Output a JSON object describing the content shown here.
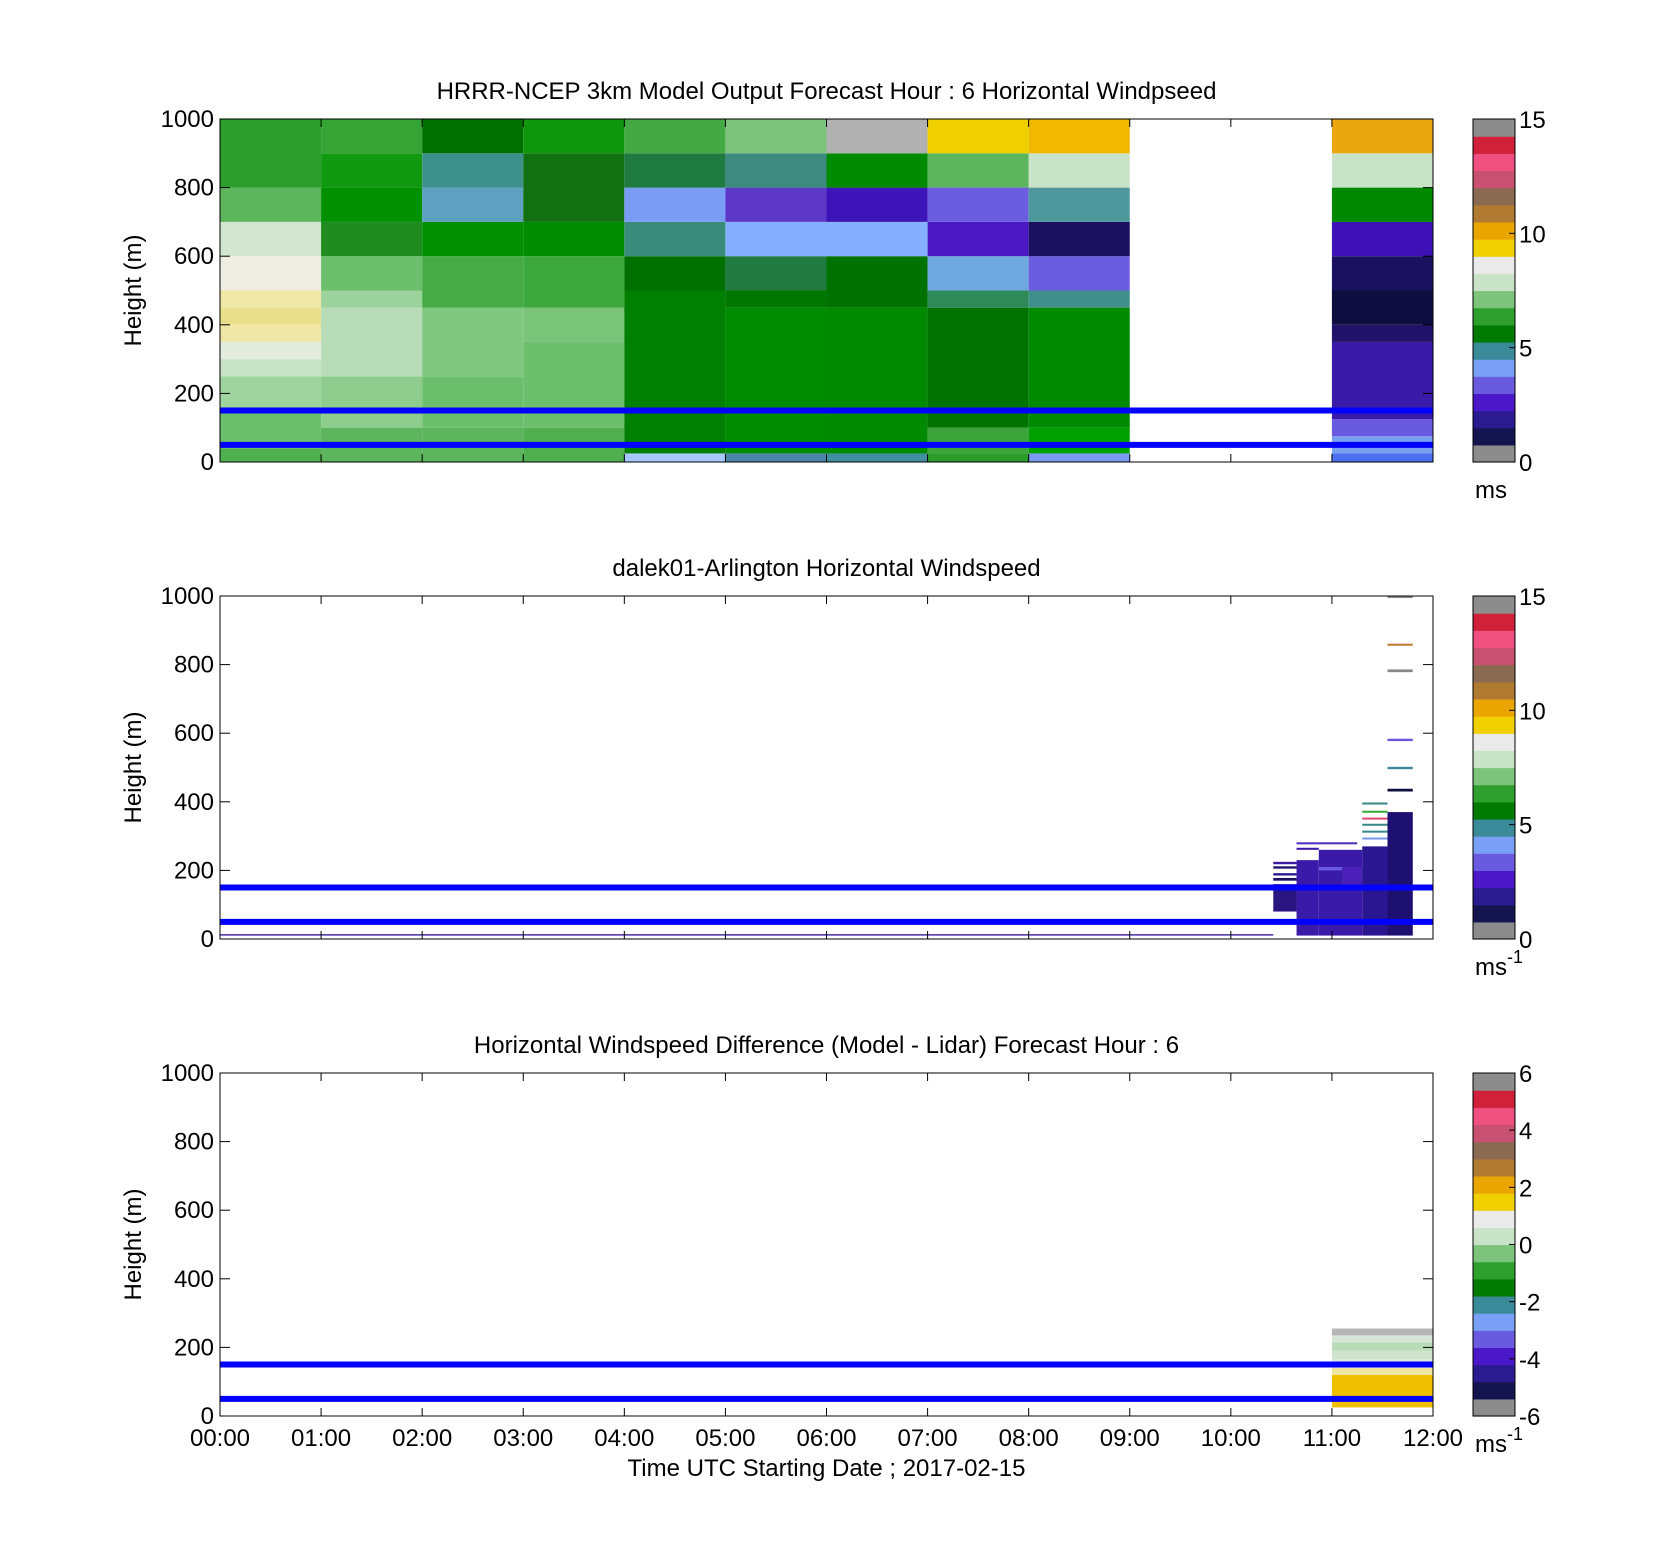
{
  "chart_data": [
    {
      "type": "heatmap",
      "title": "HRRR-NCEP 3km Model Output   Forecast Hour : 6 Horizontal Windpseed",
      "ylabel": "Height (m)",
      "ylim": [
        0,
        1000
      ],
      "yticks": [
        "0",
        "200",
        "400",
        "600",
        "800",
        "1000"
      ],
      "xlim_hours": [
        0,
        12
      ],
      "colorbar": {
        "ticks": [
          "0",
          "5",
          "10",
          "15"
        ],
        "range": [
          0,
          15
        ],
        "unit": "ms",
        "unit_sup": ""
      },
      "reference_lines_m": [
        150,
        50
      ],
      "cells": [
        {
          "t0": 0,
          "t1": 1,
          "z0": 0,
          "z1": 40,
          "color": "#4fb04f"
        },
        {
          "t0": 0,
          "t1": 1,
          "z0": 40,
          "z1": 160,
          "color": "#6cbf6c"
        },
        {
          "t0": 0,
          "t1": 1,
          "z0": 160,
          "z1": 250,
          "color": "#9fd49f"
        },
        {
          "t0": 0,
          "t1": 1,
          "z0": 250,
          "z1": 300,
          "color": "#c8e3c8"
        },
        {
          "t0": 0,
          "t1": 1,
          "z0": 300,
          "z1": 350,
          "color": "#e3ecdf"
        },
        {
          "t0": 0,
          "t1": 1,
          "z0": 350,
          "z1": 400,
          "color": "#f0e6a8"
        },
        {
          "t0": 0,
          "t1": 1,
          "z0": 400,
          "z1": 450,
          "color": "#eadf8b"
        },
        {
          "t0": 0,
          "t1": 1,
          "z0": 450,
          "z1": 500,
          "color": "#f0e8a6"
        },
        {
          "t0": 0,
          "t1": 1,
          "z0": 500,
          "z1": 600,
          "color": "#f0ede3"
        },
        {
          "t0": 0,
          "t1": 1,
          "z0": 600,
          "z1": 700,
          "color": "#d2e6d2"
        },
        {
          "t0": 0,
          "t1": 1,
          "z0": 700,
          "z1": 800,
          "color": "#5db55d"
        },
        {
          "t0": 0,
          "t1": 1,
          "z0": 800,
          "z1": 1000,
          "color": "#2d9d2d"
        },
        {
          "t0": 1,
          "t1": 2,
          "z0": 0,
          "z1": 100,
          "color": "#5db55d"
        },
        {
          "t0": 1,
          "t1": 2,
          "z0": 100,
          "z1": 250,
          "color": "#8dcc8d"
        },
        {
          "t0": 1,
          "t1": 2,
          "z0": 250,
          "z1": 450,
          "color": "#b8dcb8"
        },
        {
          "t0": 1,
          "t1": 2,
          "z0": 450,
          "z1": 500,
          "color": "#9cd29c"
        },
        {
          "t0": 1,
          "t1": 2,
          "z0": 500,
          "z1": 600,
          "color": "#6cbf6c"
        },
        {
          "t0": 1,
          "t1": 2,
          "z0": 600,
          "z1": 700,
          "color": "#1f8c1f"
        },
        {
          "t0": 1,
          "t1": 2,
          "z0": 700,
          "z1": 800,
          "color": "#009000"
        },
        {
          "t0": 1,
          "t1": 2,
          "z0": 800,
          "z1": 900,
          "color": "#119911"
        },
        {
          "t0": 1,
          "t1": 2,
          "z0": 900,
          "z1": 1000,
          "color": "#35a435"
        },
        {
          "t0": 2,
          "t1": 3,
          "z0": 0,
          "z1": 100,
          "color": "#5cb55c"
        },
        {
          "t0": 2,
          "t1": 3,
          "z0": 100,
          "z1": 250,
          "color": "#6cbf6c"
        },
        {
          "t0": 2,
          "t1": 3,
          "z0": 250,
          "z1": 450,
          "color": "#80c780"
        },
        {
          "t0": 2,
          "t1": 3,
          "z0": 450,
          "z1": 600,
          "color": "#46aa46"
        },
        {
          "t0": 2,
          "t1": 3,
          "z0": 600,
          "z1": 700,
          "color": "#009000"
        },
        {
          "t0": 2,
          "t1": 3,
          "z0": 700,
          "z1": 800,
          "color": "#5ea0c0"
        },
        {
          "t0": 2,
          "t1": 3,
          "z0": 800,
          "z1": 900,
          "color": "#3d8f8a"
        },
        {
          "t0": 2,
          "t1": 3,
          "z0": 900,
          "z1": 1000,
          "color": "#007000"
        },
        {
          "t0": 3,
          "t1": 4,
          "z0": 0,
          "z1": 100,
          "color": "#50b050"
        },
        {
          "t0": 3,
          "t1": 4,
          "z0": 100,
          "z1": 350,
          "color": "#6cbf6c"
        },
        {
          "t0": 3,
          "t1": 4,
          "z0": 350,
          "z1": 450,
          "color": "#7ac47a"
        },
        {
          "t0": 3,
          "t1": 4,
          "z0": 450,
          "z1": 600,
          "color": "#3da83d"
        },
        {
          "t0": 3,
          "t1": 4,
          "z0": 600,
          "z1": 700,
          "color": "#008c00"
        },
        {
          "t0": 3,
          "t1": 4,
          "z0": 700,
          "z1": 900,
          "color": "#117011"
        },
        {
          "t0": 3,
          "t1": 4,
          "z0": 900,
          "z1": 1000,
          "color": "#0f960f"
        },
        {
          "t0": 4,
          "t1": 5,
          "z0": 0,
          "z1": 25,
          "color": "#a6c8ff"
        },
        {
          "t0": 4,
          "t1": 5,
          "z0": 25,
          "z1": 500,
          "color": "#007f00"
        },
        {
          "t0": 4,
          "t1": 5,
          "z0": 500,
          "z1": 600,
          "color": "#007000"
        },
        {
          "t0": 4,
          "t1": 5,
          "z0": 600,
          "z1": 700,
          "color": "#3a8c7a"
        },
        {
          "t0": 4,
          "t1": 5,
          "z0": 700,
          "z1": 800,
          "color": "#7a9cf5"
        },
        {
          "t0": 4,
          "t1": 5,
          "z0": 800,
          "z1": 900,
          "color": "#1f7a3f"
        },
        {
          "t0": 4,
          "t1": 5,
          "z0": 900,
          "z1": 1000,
          "color": "#44a844"
        },
        {
          "t0": 5,
          "t1": 6,
          "z0": 0,
          "z1": 25,
          "color": "#4b86a8"
        },
        {
          "t0": 5,
          "t1": 6,
          "z0": 25,
          "z1": 450,
          "color": "#008c00"
        },
        {
          "t0": 5,
          "t1": 6,
          "z0": 450,
          "z1": 500,
          "color": "#007800"
        },
        {
          "t0": 5,
          "t1": 6,
          "z0": 500,
          "z1": 600,
          "color": "#217a3f"
        },
        {
          "t0": 5,
          "t1": 6,
          "z0": 600,
          "z1": 700,
          "color": "#85b0ff"
        },
        {
          "t0": 5,
          "t1": 6,
          "z0": 700,
          "z1": 800,
          "color": "#5d38c8"
        },
        {
          "t0": 5,
          "t1": 6,
          "z0": 800,
          "z1": 900,
          "color": "#3d8a7e"
        },
        {
          "t0": 5,
          "t1": 6,
          "z0": 900,
          "z1": 1000,
          "color": "#7dc27d"
        },
        {
          "t0": 6,
          "t1": 7,
          "z0": 0,
          "z1": 25,
          "color": "#3f8fa0"
        },
        {
          "t0": 6,
          "t1": 7,
          "z0": 25,
          "z1": 450,
          "color": "#008a00"
        },
        {
          "t0": 6,
          "t1": 7,
          "z0": 450,
          "z1": 600,
          "color": "#007200"
        },
        {
          "t0": 6,
          "t1": 7,
          "z0": 600,
          "z1": 700,
          "color": "#85b0ff"
        },
        {
          "t0": 6,
          "t1": 7,
          "z0": 700,
          "z1": 800,
          "color": "#3d14b8"
        },
        {
          "t0": 6,
          "t1": 7,
          "z0": 800,
          "z1": 900,
          "color": "#008a00"
        },
        {
          "t0": 6,
          "t1": 7,
          "z0": 900,
          "z1": 1000,
          "color": "#b1b1b1"
        },
        {
          "t0": 7,
          "t1": 8,
          "z0": 0,
          "z1": 25,
          "color": "#2a9c2a"
        },
        {
          "t0": 7,
          "t1": 8,
          "z0": 25,
          "z1": 100,
          "color": "#3ba53b"
        },
        {
          "t0": 7,
          "t1": 8,
          "z0": 100,
          "z1": 450,
          "color": "#007300"
        },
        {
          "t0": 7,
          "t1": 8,
          "z0": 450,
          "z1": 500,
          "color": "#2f8a5a"
        },
        {
          "t0": 7,
          "t1": 8,
          "z0": 500,
          "z1": 600,
          "color": "#70a8e0"
        },
        {
          "t0": 7,
          "t1": 8,
          "z0": 600,
          "z1": 700,
          "color": "#4a18c4"
        },
        {
          "t0": 7,
          "t1": 8,
          "z0": 700,
          "z1": 800,
          "color": "#6c5ce0"
        },
        {
          "t0": 7,
          "t1": 8,
          "z0": 800,
          "z1": 900,
          "color": "#5db55d"
        },
        {
          "t0": 7,
          "t1": 8,
          "z0": 900,
          "z1": 1000,
          "color": "#f0cf00"
        },
        {
          "t0": 8,
          "t1": 9,
          "z0": 0,
          "z1": 25,
          "color": "#7a9cf5"
        },
        {
          "t0": 8,
          "t1": 9,
          "z0": 25,
          "z1": 100,
          "color": "#00a000"
        },
        {
          "t0": 8,
          "t1": 9,
          "z0": 100,
          "z1": 450,
          "color": "#008a00"
        },
        {
          "t0": 8,
          "t1": 9,
          "z0": 450,
          "z1": 500,
          "color": "#3f8f8a"
        },
        {
          "t0": 8,
          "t1": 9,
          "z0": 500,
          "z1": 600,
          "color": "#6c5ce0"
        },
        {
          "t0": 8,
          "t1": 9,
          "z0": 600,
          "z1": 700,
          "color": "#1b0f60"
        },
        {
          "t0": 8,
          "t1": 9,
          "z0": 700,
          "z1": 800,
          "color": "#4e979d"
        },
        {
          "t0": 8,
          "t1": 9,
          "z0": 800,
          "z1": 900,
          "color": "#c8e3c8"
        },
        {
          "t0": 8,
          "t1": 9,
          "z0": 900,
          "z1": 1000,
          "color": "#f0b800"
        },
        {
          "t0": 11,
          "t1": 12,
          "z0": 0,
          "z1": 25,
          "color": "#4a70f0"
        },
        {
          "t0": 11,
          "t1": 12,
          "z0": 25,
          "z1": 75,
          "color": "#7aa0f0"
        },
        {
          "t0": 11,
          "t1": 12,
          "z0": 75,
          "z1": 125,
          "color": "#6a5ae0"
        },
        {
          "t0": 11,
          "t1": 12,
          "z0": 125,
          "z1": 350,
          "color": "#3a1aa8"
        },
        {
          "t0": 11,
          "t1": 12,
          "z0": 350,
          "z1": 400,
          "color": "#22136a"
        },
        {
          "t0": 11,
          "t1": 12,
          "z0": 400,
          "z1": 500,
          "color": "#0d0d40"
        },
        {
          "t0": 11,
          "t1": 12,
          "z0": 500,
          "z1": 600,
          "color": "#1a1260"
        },
        {
          "t0": 11,
          "t1": 12,
          "z0": 600,
          "z1": 700,
          "color": "#3f12b8"
        },
        {
          "t0": 11,
          "t1": 12,
          "z0": 700,
          "z1": 800,
          "color": "#008800"
        },
        {
          "t0": 11,
          "t1": 12,
          "z0": 800,
          "z1": 900,
          "color": "#c8e3c8"
        },
        {
          "t0": 11,
          "t1": 12,
          "z0": 900,
          "z1": 1000,
          "color": "#eaa70f"
        }
      ]
    },
    {
      "type": "heatmap",
      "title": "dalek01-Arlington  Horizontal Windspeed",
      "ylabel": "Height (m)",
      "ylim": [
        0,
        1000
      ],
      "yticks": [
        "0",
        "200",
        "400",
        "600",
        "800",
        "1000"
      ],
      "xlim_hours": [
        0,
        12
      ],
      "colorbar": {
        "ticks": [
          "0",
          "5",
          "10",
          "15"
        ],
        "range": [
          0,
          15
        ],
        "unit": "ms",
        "unit_sup": "-1"
      },
      "reference_lines_m": [
        150,
        50
      ],
      "cells": [
        {
          "t0": 0,
          "t1": 10.42,
          "z0": 10,
          "z1": 14,
          "color": "#3a1a9a"
        },
        {
          "t0": 10.42,
          "t1": 10.65,
          "z0": 80,
          "z1": 160,
          "color": "#2a1680"
        },
        {
          "t0": 10.42,
          "t1": 10.65,
          "z0": 170,
          "z1": 178,
          "color": "#1a1060"
        },
        {
          "t0": 10.42,
          "t1": 10.65,
          "z0": 185,
          "z1": 192,
          "color": "#2c1a90"
        },
        {
          "t0": 10.42,
          "t1": 10.65,
          "z0": 205,
          "z1": 212,
          "color": "#201470"
        },
        {
          "t0": 10.42,
          "t1": 10.65,
          "z0": 218,
          "z1": 225,
          "color": "#3a1aa0"
        },
        {
          "t0": 10.65,
          "t1": 10.87,
          "z0": 10,
          "z1": 230,
          "color": "#3a1aa8"
        },
        {
          "t0": 10.65,
          "t1": 10.87,
          "z0": 260,
          "z1": 266,
          "color": "#3a1aa8"
        },
        {
          "t0": 10.65,
          "t1": 11.25,
          "z0": 276,
          "z1": 282,
          "color": "#5030c0"
        },
        {
          "t0": 10.87,
          "t1": 11.3,
          "z0": 10,
          "z1": 260,
          "color": "#3a1aa8"
        },
        {
          "t0": 10.87,
          "t1": 11.1,
          "z0": 200,
          "z1": 210,
          "color": "#6a5ae0"
        },
        {
          "t0": 11.1,
          "t1": 11.3,
          "z0": 150,
          "z1": 210,
          "color": "#4a20b8"
        },
        {
          "t0": 11.3,
          "t1": 11.55,
          "z0": 10,
          "z1": 270,
          "color": "#2a1690"
        },
        {
          "t0": 11.3,
          "t1": 11.55,
          "z0": 310,
          "z1": 316,
          "color": "#3a8a8a"
        },
        {
          "t0": 11.3,
          "t1": 11.55,
          "z0": 330,
          "z1": 336,
          "color": "#3a8a8a"
        },
        {
          "t0": 11.3,
          "t1": 11.55,
          "z0": 348,
          "z1": 354,
          "color": "#e04a70"
        },
        {
          "t0": 11.3,
          "t1": 11.55,
          "z0": 368,
          "z1": 374,
          "color": "#3aaa3a"
        },
        {
          "t0": 11.3,
          "t1": 11.55,
          "z0": 392,
          "z1": 398,
          "color": "#3a8a8a"
        },
        {
          "t0": 11.3,
          "t1": 11.55,
          "z0": 290,
          "z1": 296,
          "color": "#7a9cf5"
        },
        {
          "t0": 11.55,
          "t1": 11.8,
          "z0": 10,
          "z1": 370,
          "color": "#1e1070"
        },
        {
          "t0": 11.55,
          "t1": 11.8,
          "z0": 430,
          "z1": 438,
          "color": "#0d0d40"
        },
        {
          "t0": 11.55,
          "t1": 11.8,
          "z0": 495,
          "z1": 502,
          "color": "#3a8a9a"
        },
        {
          "t0": 11.55,
          "t1": 11.8,
          "z0": 577,
          "z1": 584,
          "color": "#6a5ae0"
        },
        {
          "t0": 11.55,
          "t1": 11.8,
          "z0": 778,
          "z1": 786,
          "color": "#8a8a8a"
        },
        {
          "t0": 11.55,
          "t1": 11.8,
          "z0": 855,
          "z1": 861,
          "color": "#c07a30"
        },
        {
          "t0": 11.55,
          "t1": 11.8,
          "z0": 994,
          "z1": 1000,
          "color": "#8a8a8a"
        }
      ]
    },
    {
      "type": "heatmap",
      "title": "Horizontal Windspeed Difference (Model - Lidar) Forecast Hour : 6",
      "xlabel": "Time UTC  Starting Date ; 2017-02-15",
      "ylabel": "Height (m)",
      "ylim": [
        0,
        1000
      ],
      "yticks": [
        "0",
        "200",
        "400",
        "600",
        "800",
        "1000"
      ],
      "xlim_hours": [
        0,
        12
      ],
      "xticks": [
        "00:00",
        "01:00",
        "02:00",
        "03:00",
        "04:00",
        "05:00",
        "06:00",
        "07:00",
        "08:00",
        "09:00",
        "10:00",
        "11:00",
        "12:00"
      ],
      "colorbar": {
        "ticks": [
          "-6",
          "-4",
          "-2",
          "0",
          "2",
          "4",
          "6"
        ],
        "range": [
          -6,
          6
        ],
        "unit": "ms",
        "unit_sup": "-1"
      },
      "reference_lines_m": [
        150,
        50
      ],
      "cells": [
        {
          "t0": 11,
          "t1": 12,
          "z0": 25,
          "z1": 120,
          "color": "#f0c000"
        },
        {
          "t0": 11,
          "t1": 12,
          "z0": 120,
          "z1": 140,
          "color": "#f0e6a0"
        },
        {
          "t0": 11,
          "t1": 12,
          "z0": 140,
          "z1": 165,
          "color": "#e0eadc"
        },
        {
          "t0": 11,
          "t1": 12,
          "z0": 165,
          "z1": 190,
          "color": "#cfe4cf"
        },
        {
          "t0": 11,
          "t1": 12,
          "z0": 190,
          "z1": 215,
          "color": "#b8dcb8"
        },
        {
          "t0": 11,
          "t1": 12,
          "z0": 215,
          "z1": 235,
          "color": "#d8e6d8"
        },
        {
          "t0": 11,
          "t1": 12,
          "z0": 235,
          "z1": 255,
          "color": "#b5b5b5"
        }
      ]
    }
  ],
  "colormaps": {
    "windspeed": [
      "#8c8c8c",
      "#141450",
      "#2a1b90",
      "#4a18c8",
      "#6a5ae0",
      "#7aa0f5",
      "#3a8a9a",
      "#007a00",
      "#2ea02e",
      "#7cc47c",
      "#c8e3c8",
      "#eaeaea",
      "#f0d000",
      "#eaa500",
      "#b07a30",
      "#8a6a50",
      "#c85070",
      "#f05080",
      "#d0203a",
      "#8c8c8c"
    ],
    "difference": [
      "#8c8c8c",
      "#141450",
      "#2a1b90",
      "#4a18c8",
      "#6a5ae0",
      "#7aa0f5",
      "#3a8a9a",
      "#007a00",
      "#2ea02e",
      "#7cc47c",
      "#c8e3c8",
      "#eaeaea",
      "#f0d000",
      "#eaa500",
      "#b07a30",
      "#8a6a50",
      "#c85070",
      "#f05080",
      "#d0203a",
      "#8c8c8c"
    ]
  },
  "style": {
    "reference_line_color": "#0000ff",
    "axis_color": "#000000"
  }
}
